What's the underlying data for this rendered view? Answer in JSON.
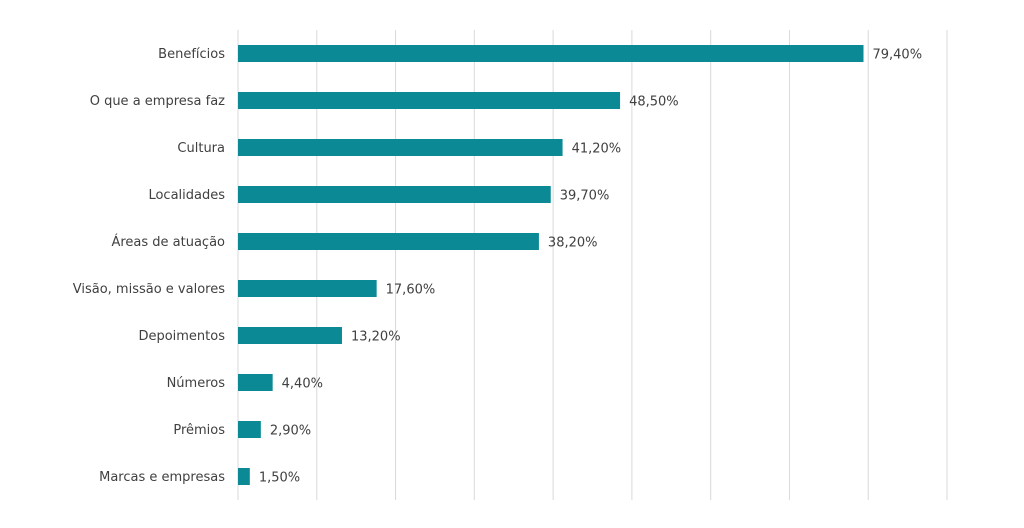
{
  "chart_data": {
    "type": "bar",
    "orientation": "horizontal",
    "categories": [
      "Benefícios",
      "O que a empresa faz",
      "Cultura",
      "Localidades",
      "Áreas de atuação",
      "Visão, missão e valores",
      "Depoimentos",
      "Números",
      "Prêmios",
      "Marcas e empresas"
    ],
    "values": [
      79.4,
      48.5,
      41.2,
      39.7,
      38.2,
      17.6,
      13.2,
      4.4,
      2.9,
      1.5
    ],
    "value_labels": [
      "79,40%",
      "48,50%",
      "41,20%",
      "39,70%",
      "38,20%",
      "17,60%",
      "13,20%",
      "4,40%",
      "2,90%",
      "1,50%"
    ],
    "title": "",
    "xlabel": "",
    "ylabel": "",
    "xlim": [
      0,
      90
    ],
    "grid": true,
    "legend": "none",
    "bar_color": "#0b8a96"
  }
}
